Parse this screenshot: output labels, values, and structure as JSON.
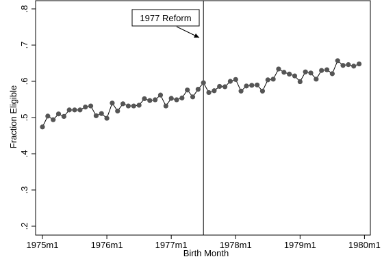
{
  "chart_data": {
    "type": "line",
    "xlabel": "Birth Month",
    "ylabel": "Fraction Eligible",
    "x_ticks": [
      {
        "label": "1975m1",
        "t": 0
      },
      {
        "label": "1976m1",
        "t": 12
      },
      {
        "label": "1977m1",
        "t": 24
      },
      {
        "label": "1978m1",
        "t": 36
      },
      {
        "label": "1979m1",
        "t": 48
      },
      {
        "label": "1980m1",
        "t": 60
      }
    ],
    "y_ticks": [
      {
        "label": ".2",
        "v": 0.2
      },
      {
        "label": ".3",
        "v": 0.3
      },
      {
        "label": ".4",
        "v": 0.4
      },
      {
        "label": ".5",
        "v": 0.5
      },
      {
        "label": ".6",
        "v": 0.6
      },
      {
        "label": ".7",
        "v": 0.7
      },
      {
        "label": ".8",
        "v": 0.8
      }
    ],
    "ylim": [
      0.2,
      0.8
    ],
    "xlim": [
      "1975m1",
      "1980m1"
    ],
    "grid": false,
    "marker_color": "#555555",
    "line_color": "#000000",
    "vline": {
      "month": "1977m7",
      "t": 30
    },
    "annotation": {
      "text": "1977 Reform"
    },
    "x": [
      "1975m1",
      "1975m2",
      "1975m3",
      "1975m4",
      "1975m5",
      "1975m6",
      "1975m7",
      "1975m8",
      "1975m9",
      "1975m10",
      "1975m11",
      "1975m12",
      "1976m1",
      "1976m2",
      "1976m3",
      "1976m4",
      "1976m5",
      "1976m6",
      "1976m7",
      "1976m8",
      "1976m9",
      "1976m10",
      "1976m11",
      "1976m12",
      "1977m1",
      "1977m2",
      "1977m3",
      "1977m4",
      "1977m5",
      "1977m6",
      "1977m7",
      "1977m8",
      "1977m9",
      "1977m10",
      "1977m11",
      "1977m12",
      "1978m1",
      "1978m2",
      "1978m3",
      "1978m4",
      "1978m5",
      "1978m6",
      "1978m7",
      "1978m8",
      "1978m9",
      "1978m10",
      "1978m11",
      "1978m12",
      "1979m1",
      "1979m2",
      "1979m3",
      "1979m4",
      "1979m5",
      "1979m6",
      "1979m7",
      "1979m8",
      "1979m9",
      "1979m10",
      "1979m11",
      "1979m12"
    ],
    "values": [
      0.474,
      0.504,
      0.494,
      0.51,
      0.503,
      0.521,
      0.521,
      0.521,
      0.529,
      0.532,
      0.505,
      0.511,
      0.498,
      0.54,
      0.518,
      0.538,
      0.532,
      0.532,
      0.534,
      0.552,
      0.547,
      0.549,
      0.562,
      0.532,
      0.553,
      0.549,
      0.554,
      0.576,
      0.557,
      0.578,
      0.596,
      0.569,
      0.574,
      0.586,
      0.585,
      0.6,
      0.605,
      0.573,
      0.587,
      0.589,
      0.59,
      0.573,
      0.604,
      0.606,
      0.634,
      0.625,
      0.62,
      0.615,
      0.599,
      0.626,
      0.623,
      0.606,
      0.63,
      0.632,
      0.621,
      0.657,
      0.644,
      0.646,
      0.642,
      0.648
    ]
  }
}
